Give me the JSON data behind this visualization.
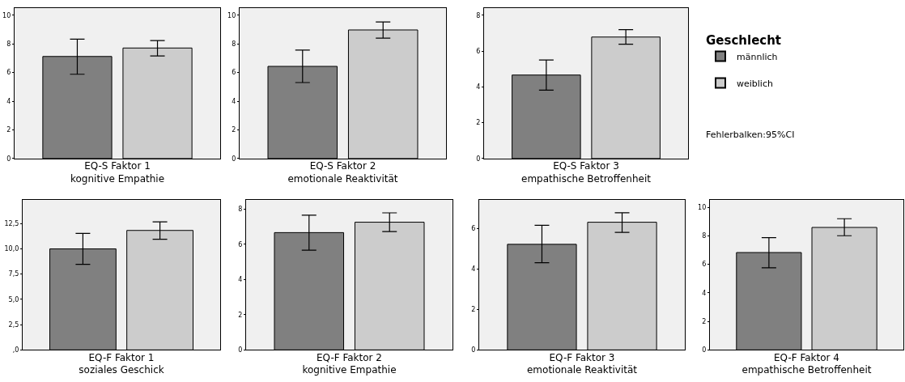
{
  "chart_data": [
    {
      "type": "bar",
      "xlabel": "EQ-S Faktor 1\nkognitive Empathie",
      "categories": [
        null
      ],
      "ylim": [
        0,
        10.5
      ],
      "yticks": [
        0,
        2,
        4,
        6,
        8,
        10
      ],
      "legend": "right",
      "legend_title": "Geschlecht",
      "annotations": [
        "Fehlerbalken:95%CI"
      ],
      "series": [
        {
          "name": "männlich",
          "color": "#808080",
          "values": [
            7.12
          ],
          "errors": [
            [
              5.88,
              8.33
            ]
          ]
        },
        {
          "name": "weiblich",
          "color": "#cccccc",
          "values": [
            7.71
          ],
          "errors": [
            [
              7.16,
              8.23
            ]
          ]
        }
      ]
    },
    {
      "type": "bar",
      "xlabel": "EQ-S Faktor 2\nemotionale Reaktivität",
      "categories": [
        null
      ],
      "ylim": [
        0,
        10.5
      ],
      "yticks": [
        0,
        2,
        4,
        6,
        8,
        10
      ],
      "series": [
        {
          "name": "männlich",
          "color": "#808080",
          "values": [
            6.43
          ],
          "errors": [
            [
              5.3,
              7.56
            ]
          ]
        },
        {
          "name": "weiblich",
          "color": "#cccccc",
          "values": [
            8.97
          ],
          "errors": [
            [
              8.4,
              9.53
            ]
          ]
        }
      ]
    },
    {
      "type": "bar",
      "xlabel": "EQ-S Faktor 3\nempathische Betroffenheit",
      "categories": [
        null
      ],
      "ylim": [
        0,
        8.4
      ],
      "yticks": [
        0,
        2,
        4,
        6,
        8
      ],
      "series": [
        {
          "name": "männlich",
          "color": "#808080",
          "values": [
            4.66
          ],
          "errors": [
            [
              3.82,
              5.5
            ]
          ]
        },
        {
          "name": "weiblich",
          "color": "#cccccc",
          "values": [
            6.78
          ],
          "errors": [
            [
              6.38,
              7.19
            ]
          ]
        }
      ]
    },
    {
      "type": "bar",
      "xlabel": "EQ-F Faktor 1\nsoziales Geschick",
      "categories": [
        null
      ],
      "ylim": [
        0,
        14.8
      ],
      "yticks": [
        {
          "value": 0,
          "label": ",0"
        },
        {
          "value": 2.5,
          "label": "2,5"
        },
        {
          "value": 5,
          "label": "5,0"
        },
        {
          "value": 7.5,
          "label": "7,5"
        },
        {
          "value": 10,
          "label": "10,0"
        },
        {
          "value": 12.5,
          "label": "12,5"
        }
      ],
      "series": [
        {
          "name": "männlich",
          "color": "#808080",
          "values": [
            9.99
          ],
          "errors": [
            [
              8.46,
              11.52
            ]
          ]
        },
        {
          "name": "weiblich",
          "color": "#cccccc",
          "values": [
            11.81
          ],
          "errors": [
            [
              10.94,
              12.66
            ]
          ]
        }
      ]
    },
    {
      "type": "bar",
      "xlabel": "EQ-F Faktor 2\nkognitive Empathie",
      "categories": [
        null
      ],
      "ylim": [
        0,
        8.5
      ],
      "yticks": [
        0,
        2,
        4,
        6,
        8
      ],
      "series": [
        {
          "name": "männlich",
          "color": "#808080",
          "values": [
            6.66
          ],
          "errors": [
            [
              5.66,
              7.65
            ]
          ]
        },
        {
          "name": "weiblich",
          "color": "#cccccc",
          "values": [
            7.25
          ],
          "errors": [
            [
              6.72,
              7.78
            ]
          ]
        }
      ]
    },
    {
      "type": "bar",
      "xlabel": "EQ-F Faktor 3\nemotionale Reaktivität",
      "categories": [
        null
      ],
      "ylim": [
        0,
        7.4
      ],
      "yticks": [
        0,
        2,
        4,
        6
      ],
      "series": [
        {
          "name": "männlich",
          "color": "#808080",
          "values": [
            5.22
          ],
          "errors": [
            [
              4.31,
              6.16
            ]
          ]
        },
        {
          "name": "weiblich",
          "color": "#cccccc",
          "values": [
            6.31
          ],
          "errors": [
            [
              5.81,
              6.78
            ]
          ]
        }
      ]
    },
    {
      "type": "bar",
      "xlabel": "EQ-F Faktor 4\nempathische Betroffenheit",
      "categories": [
        null
      ],
      "ylim": [
        0,
        10.5
      ],
      "yticks": [
        0,
        2,
        4,
        6,
        8,
        10
      ],
      "series": [
        {
          "name": "männlich",
          "color": "#808080",
          "values": [
            6.83
          ],
          "errors": [
            [
              5.76,
              7.87
            ]
          ]
        },
        {
          "name": "weiblich",
          "color": "#cccccc",
          "values": [
            8.59
          ],
          "errors": [
            [
              8.01,
              9.2
            ]
          ]
        }
      ]
    }
  ]
}
